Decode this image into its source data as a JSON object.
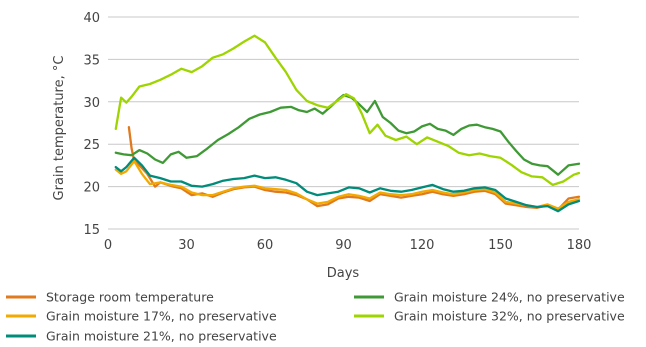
{
  "chart_data": {
    "type": "line",
    "title": "",
    "xlabel": "Days",
    "ylabel": "Grain temperature, °C",
    "xlim": [
      0,
      180
    ],
    "ylim": [
      15,
      40
    ],
    "xticks": [
      0,
      30,
      60,
      90,
      120,
      150,
      180
    ],
    "yticks": [
      15,
      20,
      25,
      30,
      35,
      40
    ],
    "grid": "horizontal",
    "legend_position": "bottom",
    "series": [
      {
        "name": "Storage room temperature",
        "color": "#e07a1f",
        "points": [
          [
            8,
            27
          ],
          [
            9,
            24.5
          ],
          [
            10,
            23
          ],
          [
            12,
            22.5
          ],
          [
            15,
            21.5
          ],
          [
            18,
            20
          ],
          [
            20,
            20.5
          ],
          [
            25,
            20
          ],
          [
            28,
            19.8
          ],
          [
            32,
            19
          ],
          [
            36,
            19.2
          ],
          [
            40,
            18.8
          ],
          [
            44,
            19.3
          ],
          [
            48,
            19.7
          ],
          [
            52,
            19.9
          ],
          [
            56,
            20
          ],
          [
            60,
            19.6
          ],
          [
            64,
            19.4
          ],
          [
            68,
            19.3
          ],
          [
            72,
            19
          ],
          [
            76,
            18.5
          ],
          [
            80,
            17.7
          ],
          [
            84,
            17.9
          ],
          [
            88,
            18.6
          ],
          [
            92,
            18.8
          ],
          [
            96,
            18.7
          ],
          [
            100,
            18.3
          ],
          [
            104,
            19.1
          ],
          [
            108,
            18.9
          ],
          [
            112,
            18.7
          ],
          [
            116,
            18.9
          ],
          [
            120,
            19.1
          ],
          [
            124,
            19.4
          ],
          [
            128,
            19.1
          ],
          [
            132,
            18.9
          ],
          [
            136,
            19.1
          ],
          [
            140,
            19.4
          ],
          [
            144,
            19.5
          ],
          [
            148,
            19.1
          ],
          [
            152,
            18
          ],
          [
            156,
            17.8
          ],
          [
            160,
            17.6
          ],
          [
            164,
            17.5
          ],
          [
            168,
            17.8
          ],
          [
            172,
            17.3
          ],
          [
            176,
            18.6
          ],
          [
            180,
            18.8
          ]
        ]
      },
      {
        "name": "Grain moisture 17%, no preservative",
        "color": "#f2a900",
        "points": [
          [
            3,
            22
          ],
          [
            5,
            21.5
          ],
          [
            7,
            21.8
          ],
          [
            10,
            23
          ],
          [
            13,
            21.5
          ],
          [
            16,
            20.3
          ],
          [
            20,
            20.5
          ],
          [
            24,
            20.2
          ],
          [
            28,
            20
          ],
          [
            32,
            19.3
          ],
          [
            36,
            19
          ],
          [
            40,
            19
          ],
          [
            44,
            19.4
          ],
          [
            48,
            19.8
          ],
          [
            52,
            20
          ],
          [
            56,
            20.1
          ],
          [
            60,
            19.8
          ],
          [
            64,
            19.7
          ],
          [
            68,
            19.6
          ],
          [
            72,
            19.2
          ],
          [
            76,
            18.5
          ],
          [
            80,
            18
          ],
          [
            84,
            18.2
          ],
          [
            88,
            18.8
          ],
          [
            92,
            19.1
          ],
          [
            96,
            18.9
          ],
          [
            100,
            18.6
          ],
          [
            104,
            19.3
          ],
          [
            108,
            19.1
          ],
          [
            112,
            19
          ],
          [
            116,
            19.1
          ],
          [
            120,
            19.4
          ],
          [
            124,
            19.6
          ],
          [
            128,
            19.3
          ],
          [
            132,
            19.1
          ],
          [
            136,
            19.3
          ],
          [
            140,
            19.6
          ],
          [
            144,
            19.7
          ],
          [
            148,
            19.3
          ],
          [
            152,
            18.2
          ],
          [
            156,
            18
          ],
          [
            160,
            17.8
          ],
          [
            164,
            17.6
          ],
          [
            168,
            17.9
          ],
          [
            172,
            17.4
          ],
          [
            176,
            18.2
          ],
          [
            180,
            18.5
          ]
        ]
      },
      {
        "name": "Grain moisture 21%, no preservative",
        "color": "#008c7a",
        "points": [
          [
            3,
            22.3
          ],
          [
            5,
            21.8
          ],
          [
            7,
            22.3
          ],
          [
            10,
            23.4
          ],
          [
            13,
            22.5
          ],
          [
            16,
            21.3
          ],
          [
            20,
            21
          ],
          [
            24,
            20.6
          ],
          [
            28,
            20.6
          ],
          [
            32,
            20.1
          ],
          [
            36,
            20
          ],
          [
            40,
            20.3
          ],
          [
            44,
            20.7
          ],
          [
            48,
            20.9
          ],
          [
            52,
            21
          ],
          [
            56,
            21.3
          ],
          [
            60,
            21
          ],
          [
            64,
            21.1
          ],
          [
            68,
            20.8
          ],
          [
            72,
            20.4
          ],
          [
            76,
            19.4
          ],
          [
            80,
            19
          ],
          [
            84,
            19.2
          ],
          [
            88,
            19.4
          ],
          [
            92,
            19.9
          ],
          [
            96,
            19.8
          ],
          [
            100,
            19.3
          ],
          [
            104,
            19.8
          ],
          [
            108,
            19.5
          ],
          [
            112,
            19.4
          ],
          [
            116,
            19.6
          ],
          [
            120,
            19.9
          ],
          [
            124,
            20.2
          ],
          [
            128,
            19.7
          ],
          [
            132,
            19.4
          ],
          [
            136,
            19.5
          ],
          [
            140,
            19.8
          ],
          [
            144,
            19.9
          ],
          [
            148,
            19.6
          ],
          [
            152,
            18.6
          ],
          [
            156,
            18.2
          ],
          [
            160,
            17.8
          ],
          [
            164,
            17.6
          ],
          [
            168,
            17.7
          ],
          [
            172,
            17.1
          ],
          [
            176,
            17.9
          ],
          [
            180,
            18.3
          ]
        ]
      },
      {
        "name": "Grain moisture 24%, no preservative",
        "color": "#3f9a36",
        "points": [
          [
            3,
            24
          ],
          [
            6,
            23.8
          ],
          [
            9,
            23.7
          ],
          [
            12,
            24.3
          ],
          [
            15,
            23.9
          ],
          [
            18,
            23.2
          ],
          [
            21,
            22.8
          ],
          [
            24,
            23.8
          ],
          [
            27,
            24.1
          ],
          [
            30,
            23.4
          ],
          [
            34,
            23.6
          ],
          [
            38,
            24.5
          ],
          [
            42,
            25.5
          ],
          [
            46,
            26.2
          ],
          [
            50,
            27
          ],
          [
            54,
            28
          ],
          [
            58,
            28.5
          ],
          [
            62,
            28.8
          ],
          [
            66,
            29.3
          ],
          [
            70,
            29.4
          ],
          [
            73,
            29
          ],
          [
            76,
            28.8
          ],
          [
            79,
            29.2
          ],
          [
            82,
            28.6
          ],
          [
            85,
            29.4
          ],
          [
            88,
            30.3
          ],
          [
            90,
            30.8
          ],
          [
            93,
            30.5
          ],
          [
            96,
            29.7
          ],
          [
            99,
            28.8
          ],
          [
            102,
            30.1
          ],
          [
            105,
            28.2
          ],
          [
            108,
            27.5
          ],
          [
            111,
            26.6
          ],
          [
            114,
            26.3
          ],
          [
            117,
            26.5
          ],
          [
            120,
            27.1
          ],
          [
            123,
            27.4
          ],
          [
            126,
            26.8
          ],
          [
            129,
            26.6
          ],
          [
            132,
            26.1
          ],
          [
            135,
            26.8
          ],
          [
            138,
            27.2
          ],
          [
            141,
            27.3
          ],
          [
            144,
            27
          ],
          [
            147,
            26.8
          ],
          [
            150,
            26.5
          ],
          [
            153,
            25.3
          ],
          [
            156,
            24.2
          ],
          [
            159,
            23.2
          ],
          [
            162,
            22.7
          ],
          [
            165,
            22.5
          ],
          [
            168,
            22.4
          ],
          [
            172,
            21.4
          ],
          [
            176,
            22.5
          ],
          [
            180,
            22.7
          ]
        ]
      },
      {
        "name": "Grain moisture 32%, no preservative",
        "color": "#9ed400",
        "points": [
          [
            3,
            26.8
          ],
          [
            5,
            30.5
          ],
          [
            7,
            29.9
          ],
          [
            9,
            30.6
          ],
          [
            12,
            31.8
          ],
          [
            16,
            32.1
          ],
          [
            20,
            32.6
          ],
          [
            24,
            33.2
          ],
          [
            28,
            33.9
          ],
          [
            32,
            33.5
          ],
          [
            36,
            34.2
          ],
          [
            40,
            35.2
          ],
          [
            44,
            35.6
          ],
          [
            48,
            36.3
          ],
          [
            52,
            37.1
          ],
          [
            56,
            37.8
          ],
          [
            60,
            37
          ],
          [
            64,
            35.2
          ],
          [
            68,
            33.5
          ],
          [
            72,
            31.4
          ],
          [
            76,
            30.1
          ],
          [
            80,
            29.6
          ],
          [
            84,
            29.3
          ],
          [
            88,
            30.2
          ],
          [
            91,
            30.9
          ],
          [
            94,
            30.4
          ],
          [
            97,
            28.6
          ],
          [
            100,
            26.3
          ],
          [
            103,
            27.3
          ],
          [
            106,
            26
          ],
          [
            110,
            25.5
          ],
          [
            114,
            25.9
          ],
          [
            118,
            25
          ],
          [
            122,
            25.8
          ],
          [
            126,
            25.3
          ],
          [
            130,
            24.8
          ],
          [
            134,
            24
          ],
          [
            138,
            23.7
          ],
          [
            142,
            23.9
          ],
          [
            146,
            23.6
          ],
          [
            150,
            23.4
          ],
          [
            154,
            22.6
          ],
          [
            158,
            21.7
          ],
          [
            162,
            21.2
          ],
          [
            166,
            21.1
          ],
          [
            170,
            20.2
          ],
          [
            174,
            20.6
          ],
          [
            178,
            21.4
          ],
          [
            180,
            21.6
          ]
        ]
      }
    ]
  }
}
